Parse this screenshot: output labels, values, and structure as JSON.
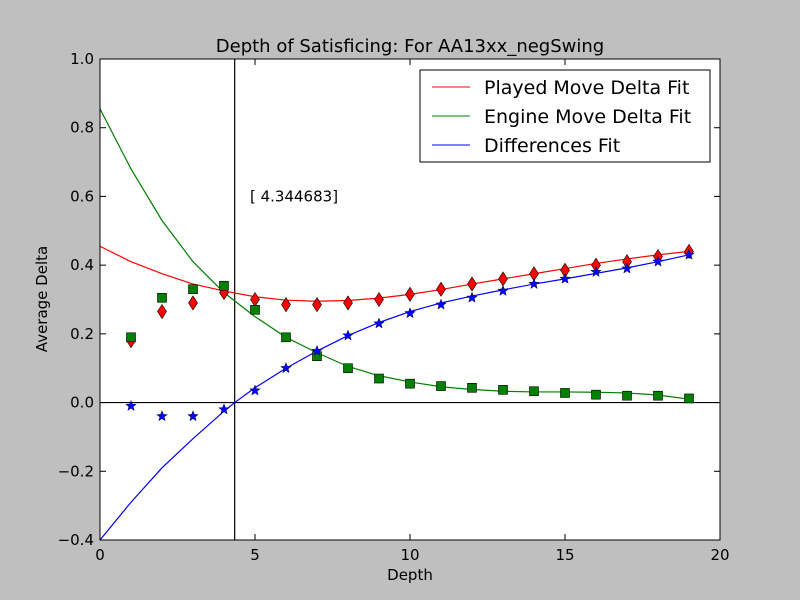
{
  "chart_data": {
    "type": "line",
    "title": "Depth of Satisficing: For AA13xx_negSwing",
    "xlabel": "Depth",
    "ylabel": "Average Delta",
    "xlim": [
      0,
      20
    ],
    "ylim": [
      -0.4,
      1.0
    ],
    "xticks": [
      "0",
      "5",
      "10",
      "15",
      "20"
    ],
    "xtick_values": [
      0,
      5,
      10,
      15,
      20
    ],
    "yticks": [
      "−0.4",
      "−0.2",
      "0.0",
      "0.2",
      "0.4",
      "0.6",
      "0.8",
      "1.0"
    ],
    "ytick_values": [
      -0.4,
      -0.2,
      0.0,
      0.2,
      0.4,
      0.6,
      0.8,
      1.0
    ],
    "grid": false,
    "legend_position": "top-right",
    "annotation": {
      "text": "[ 4.344683]",
      "x": 5,
      "y": 0.6
    },
    "vline_x": 4.344683,
    "hline_y": 0,
    "x": [
      1,
      2,
      3,
      4,
      5,
      6,
      7,
      8,
      9,
      10,
      11,
      12,
      13,
      14,
      15,
      16,
      17,
      18,
      19
    ],
    "series": [
      {
        "name": "Played Move Delta Fit",
        "color": "#ff0000",
        "marker": "diamond",
        "values": [
          0.18,
          0.265,
          0.29,
          0.32,
          0.3,
          0.285,
          0.285,
          0.29,
          0.3,
          0.315,
          0.33,
          0.345,
          0.36,
          0.375,
          0.385,
          0.4,
          0.41,
          0.425,
          0.44
        ],
        "fit_x": [
          0,
          1,
          2,
          3,
          4,
          5,
          6,
          7,
          8,
          9,
          10,
          11,
          12,
          13,
          14,
          15,
          16,
          17,
          18,
          19
        ],
        "fit_y": [
          0.455,
          0.41,
          0.375,
          0.345,
          0.325,
          0.308,
          0.298,
          0.295,
          0.297,
          0.304,
          0.315,
          0.329,
          0.345,
          0.36,
          0.375,
          0.39,
          0.405,
          0.418,
          0.43,
          0.44
        ]
      },
      {
        "name": "Engine Move Delta Fit",
        "color": "#008000",
        "marker": "square",
        "values": [
          0.19,
          0.305,
          0.33,
          0.34,
          0.27,
          0.19,
          0.135,
          0.1,
          0.07,
          0.055,
          0.048,
          0.043,
          0.037,
          0.033,
          0.028,
          0.023,
          0.02,
          0.02,
          0.012
        ],
        "fit_x": [
          0,
          1,
          2,
          3,
          4,
          5,
          6,
          7,
          8,
          9,
          10,
          11,
          12,
          13,
          14,
          15,
          16,
          17,
          18,
          19
        ],
        "fit_y": [
          0.855,
          0.68,
          0.53,
          0.41,
          0.32,
          0.25,
          0.19,
          0.145,
          0.105,
          0.078,
          0.06,
          0.046,
          0.038,
          0.033,
          0.031,
          0.031,
          0.03,
          0.028,
          0.022,
          0.01
        ]
      },
      {
        "name": "Differences Fit",
        "color": "#0000ff",
        "marker": "star",
        "values": [
          -0.01,
          -0.04,
          -0.04,
          -0.02,
          0.035,
          0.1,
          0.15,
          0.195,
          0.23,
          0.26,
          0.285,
          0.305,
          0.325,
          0.345,
          0.36,
          0.38,
          0.39,
          0.41,
          0.43
        ],
        "fit_x": [
          0,
          1,
          2,
          3,
          4,
          4.344683,
          5,
          6,
          7,
          8,
          9,
          10,
          11,
          12,
          13,
          14,
          15,
          16,
          17,
          18,
          19
        ],
        "fit_y": [
          -0.4,
          -0.29,
          -0.19,
          -0.105,
          -0.025,
          0,
          0.043,
          0.1,
          0.15,
          0.195,
          0.233,
          0.265,
          0.29,
          0.31,
          0.328,
          0.345,
          0.36,
          0.376,
          0.392,
          0.41,
          0.43
        ]
      }
    ]
  }
}
